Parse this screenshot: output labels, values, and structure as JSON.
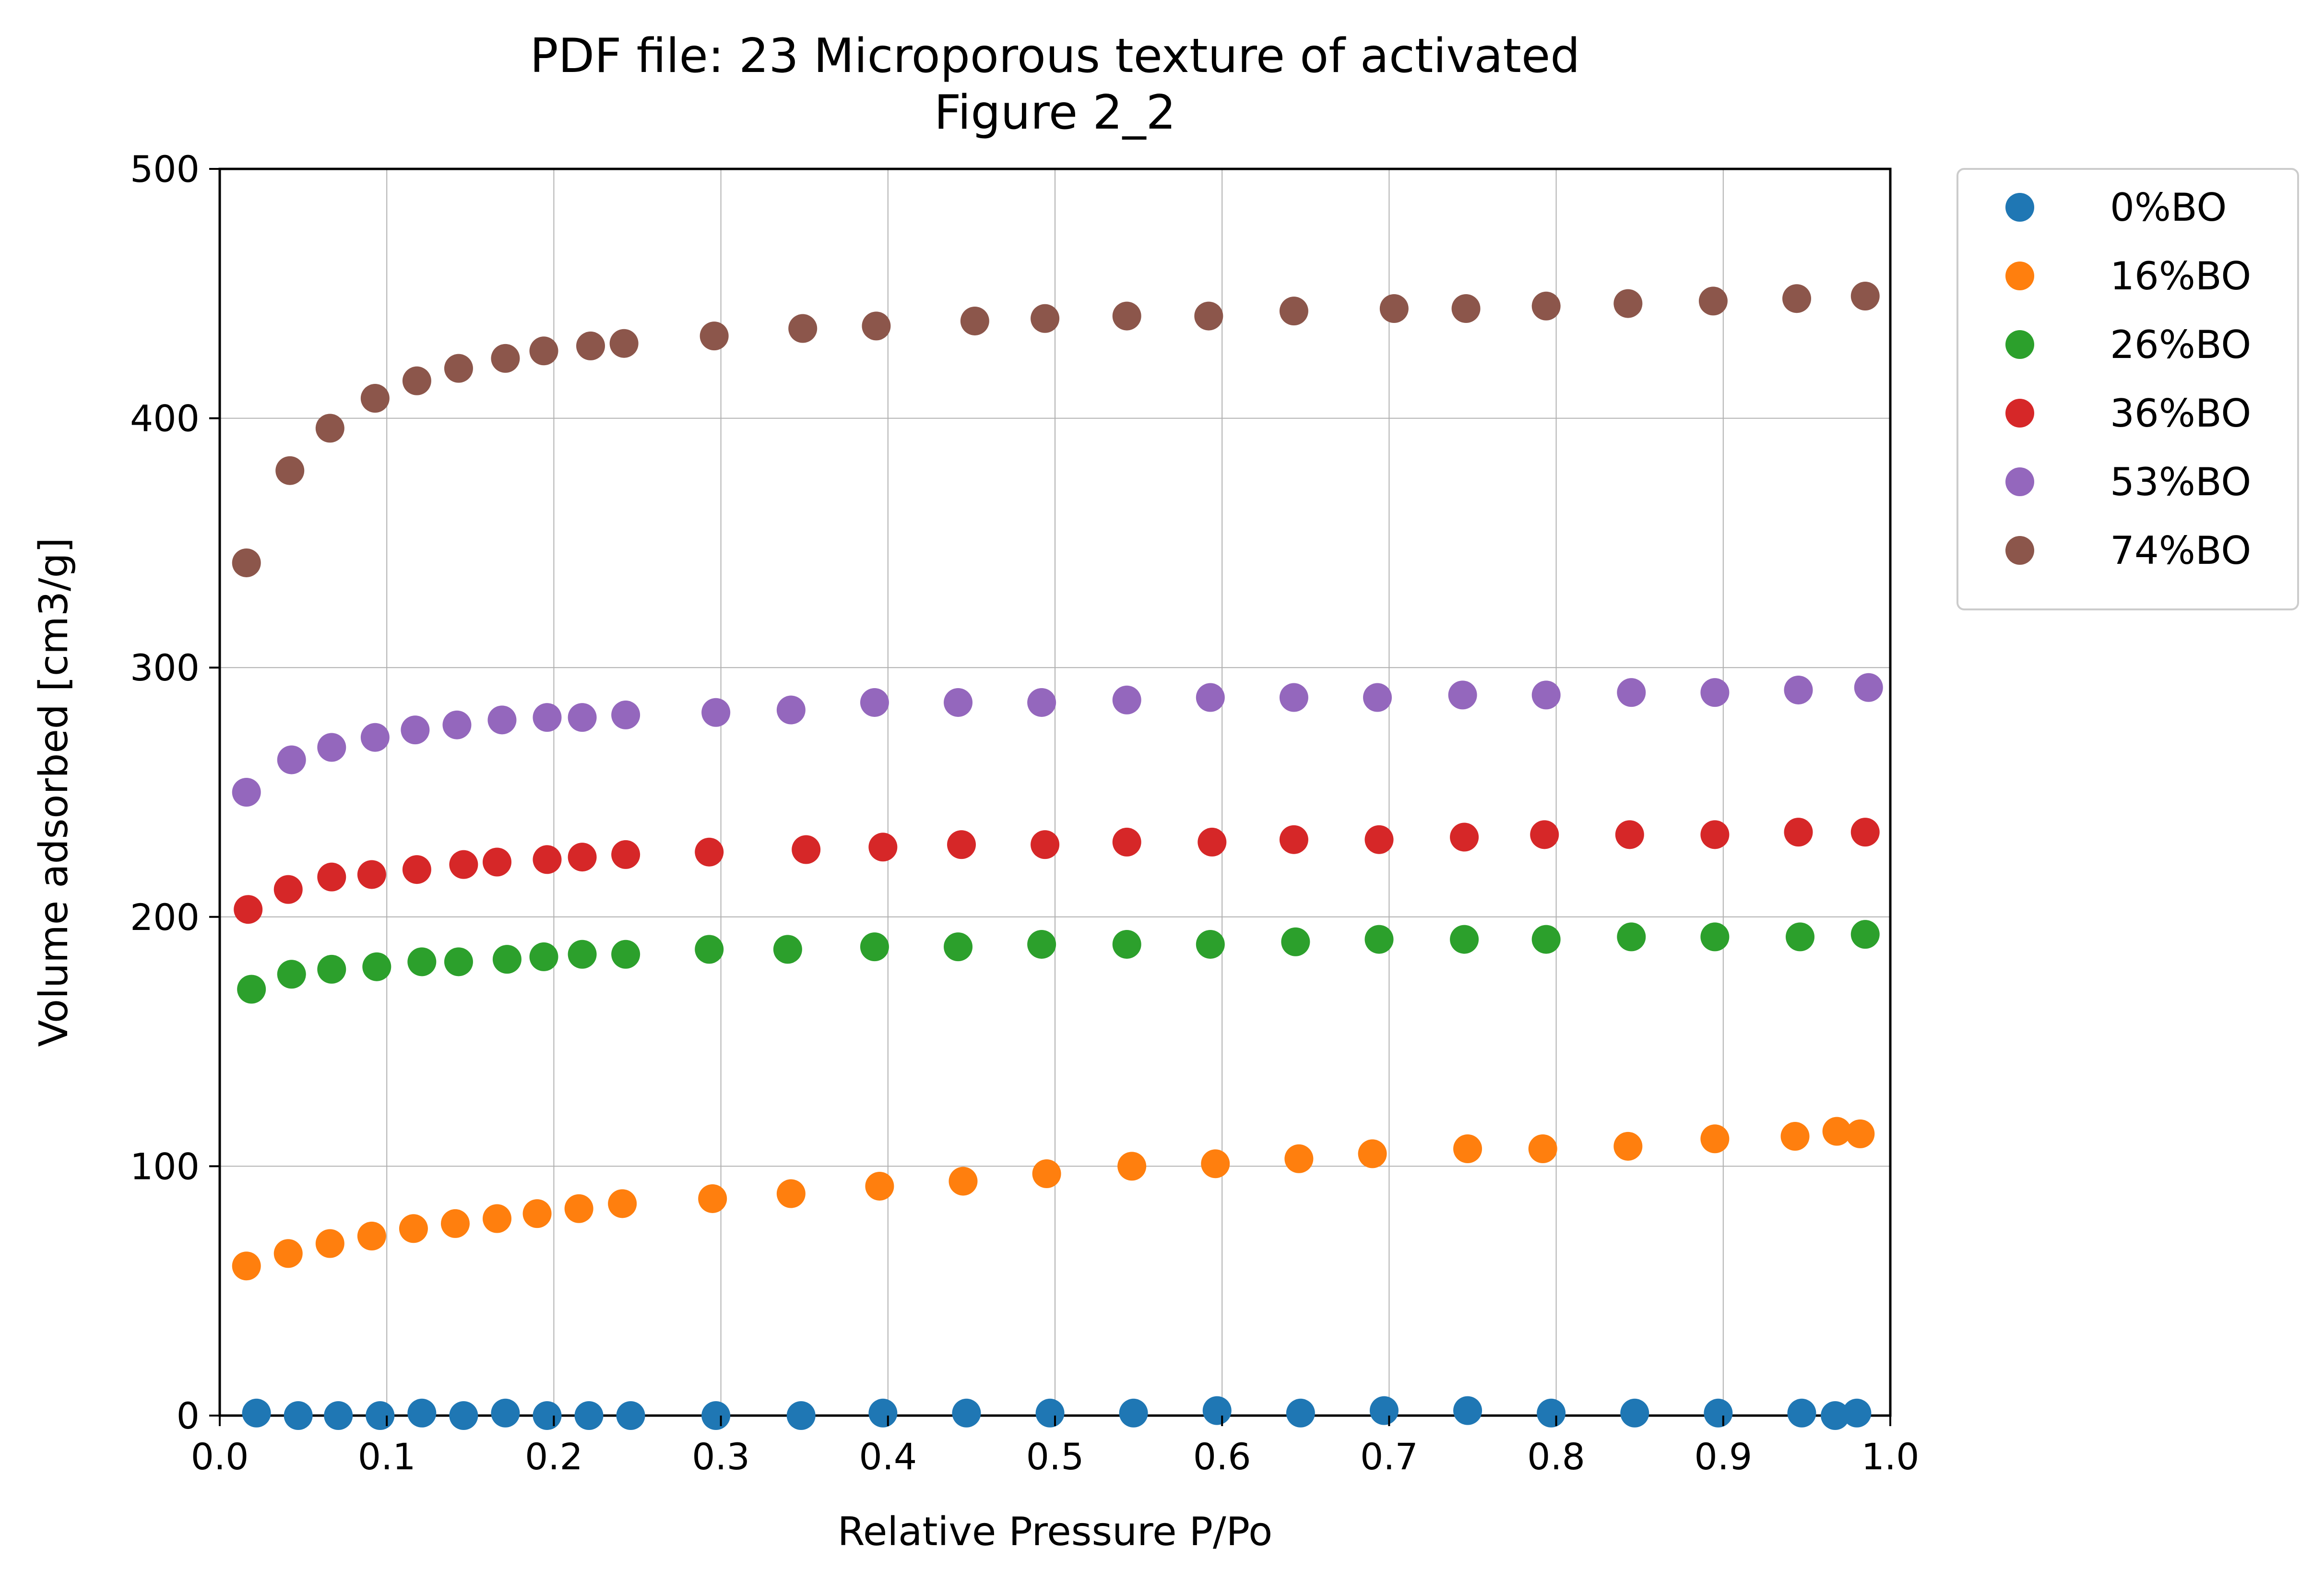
{
  "chart_data": {
    "type": "scatter",
    "title": "PDF file: 23 Microporous texture of activated\nFigure 2_2",
    "xlabel": "Relative Pressure P/Po",
    "ylabel": "Volume adsorbed [cm3/g]",
    "xlim": [
      0.0,
      1.0
    ],
    "ylim": [
      0,
      500
    ],
    "xticks": [
      "0.0",
      "0.1",
      "0.2",
      "0.3",
      "0.4",
      "0.5",
      "0.6",
      "0.7",
      "0.8",
      "0.9",
      "1.0"
    ],
    "yticks": [
      "0",
      "100",
      "200",
      "300",
      "400",
      "500"
    ],
    "grid": true,
    "legend_position": "outside-upper-right",
    "series": [
      {
        "name": "0%BO",
        "color": "#1f77b4",
        "x": [
          0.022,
          0.047,
          0.071,
          0.096,
          0.121,
          0.146,
          0.171,
          0.196,
          0.221,
          0.246,
          0.297,
          0.348,
          0.397,
          0.447,
          0.497,
          0.547,
          0.597,
          0.647,
          0.697,
          0.747,
          0.797,
          0.847,
          0.897,
          0.947,
          0.967,
          0.98
        ],
        "y": [
          1,
          0,
          0,
          0,
          1,
          0,
          1,
          0,
          0,
          0,
          0,
          0,
          1,
          1,
          1,
          1,
          2,
          1,
          2,
          2,
          1,
          1,
          1,
          1,
          0,
          1
        ]
      },
      {
        "name": "16%BO",
        "color": "#ff7f0e",
        "x": [
          0.016,
          0.041,
          0.066,
          0.091,
          0.116,
          0.141,
          0.166,
          0.19,
          0.215,
          0.241,
          0.295,
          0.342,
          0.395,
          0.445,
          0.495,
          0.546,
          0.596,
          0.646,
          0.69,
          0.747,
          0.792,
          0.843,
          0.895,
          0.943,
          0.968,
          0.982
        ],
        "y": [
          60,
          65,
          69,
          72,
          75,
          77,
          79,
          81,
          83,
          85,
          87,
          89,
          92,
          94,
          97,
          100,
          101,
          103,
          105,
          107,
          107,
          108,
          111,
          112,
          114,
          113
        ]
      },
      {
        "name": "26%BO",
        "color": "#2ca02c",
        "x": [
          0.019,
          0.043,
          0.067,
          0.094,
          0.121,
          0.143,
          0.172,
          0.194,
          0.217,
          0.243,
          0.293,
          0.34,
          0.392,
          0.442,
          0.492,
          0.543,
          0.593,
          0.644,
          0.694,
          0.745,
          0.794,
          0.845,
          0.895,
          0.946,
          0.985
        ],
        "y": [
          171,
          177,
          179,
          180,
          182,
          182,
          183,
          184,
          185,
          185,
          187,
          187,
          188,
          188,
          189,
          189,
          189,
          190,
          191,
          191,
          191,
          192,
          192,
          192,
          193
        ]
      },
      {
        "name": "36%BO",
        "color": "#d62728",
        "x": [
          0.017,
          0.041,
          0.067,
          0.091,
          0.118,
          0.146,
          0.166,
          0.196,
          0.217,
          0.243,
          0.293,
          0.351,
          0.397,
          0.444,
          0.494,
          0.543,
          0.594,
          0.643,
          0.694,
          0.745,
          0.793,
          0.844,
          0.895,
          0.945,
          0.985
        ],
        "y": [
          203,
          211,
          216,
          217,
          219,
          221,
          222,
          223,
          224,
          225,
          226,
          227,
          228,
          229,
          229,
          230,
          230,
          231,
          231,
          232,
          233,
          233,
          233,
          234,
          234
        ]
      },
      {
        "name": "53%BO",
        "color": "#9467bd",
        "x": [
          0.016,
          0.043,
          0.067,
          0.093,
          0.117,
          0.142,
          0.169,
          0.196,
          0.217,
          0.243,
          0.297,
          0.342,
          0.392,
          0.442,
          0.492,
          0.543,
          0.593,
          0.643,
          0.693,
          0.744,
          0.794,
          0.845,
          0.895,
          0.945,
          0.987
        ],
        "y": [
          250,
          263,
          268,
          272,
          275,
          277,
          279,
          280,
          280,
          281,
          282,
          283,
          286,
          286,
          286,
          287,
          288,
          288,
          288,
          289,
          289,
          290,
          290,
          291,
          292
        ]
      },
      {
        "name": "74%BO",
        "color": "#8c564b",
        "x": [
          0.016,
          0.042,
          0.066,
          0.093,
          0.118,
          0.143,
          0.171,
          0.194,
          0.222,
          0.242,
          0.296,
          0.349,
          0.393,
          0.452,
          0.494,
          0.543,
          0.592,
          0.643,
          0.703,
          0.746,
          0.794,
          0.843,
          0.894,
          0.944,
          0.985
        ],
        "y": [
          342,
          379,
          396,
          408,
          415,
          420,
          424,
          427,
          429,
          430,
          433,
          436,
          437,
          439,
          440,
          441,
          441,
          443,
          444,
          444,
          445,
          446,
          447,
          448,
          449
        ]
      }
    ]
  }
}
